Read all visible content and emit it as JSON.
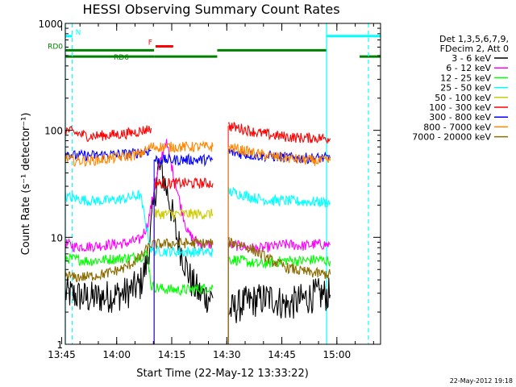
{
  "chart_data": {
    "type": "line",
    "title": "HESSI Observing Summary Count Rates",
    "xlabel": "Start Time (22-May-12 13:33:22)",
    "ylabel": "Count Rate (s⁻¹ detector⁻¹)",
    "x_range_minutes": [
      13.6,
      99.5
    ],
    "x_ticks": [
      {
        "t": 12.6,
        "label": "13:45"
      },
      {
        "t": 27.6,
        "label": "14:00"
      },
      {
        "t": 42.6,
        "label": "14:15"
      },
      {
        "t": 57.6,
        "label": "14:30"
      },
      {
        "t": 72.6,
        "label": "14:45"
      },
      {
        "t": 87.6,
        "label": "15:00"
      }
    ],
    "y_scale": "log",
    "ylim": [
      1,
      1000
    ],
    "y_ticks": [
      "1",
      "10",
      "100",
      "1000"
    ],
    "legend": {
      "placement": "right",
      "header": [
        "Det 1,3,5,6,7,9,",
        "FDecim 2, Att 0"
      ],
      "entries": [
        {
          "label": "3 - 6 keV",
          "color": "#000000"
        },
        {
          "label": "6 - 12 keV",
          "color": "#ff00ff"
        },
        {
          "label": "12 - 25 keV",
          "color": "#00ff00"
        },
        {
          "label": "25 - 50 keV",
          "color": "#00ffff"
        },
        {
          "label": "50 - 100 keV",
          "color": "#cccc00"
        },
        {
          "label": "100 - 300 keV",
          "color": "#ff0000"
        },
        {
          "label": "300 - 800 keV",
          "color": "#0000ff"
        },
        {
          "label": "800 - 7000 keV",
          "color": "#ff8800"
        },
        {
          "label": "7000 - 20000 keV",
          "color": "#8b6b00"
        }
      ]
    },
    "series": [
      {
        "name": "3 - 6 keV",
        "color": "#000000",
        "segments": [
          [
            [
              13.6,
              3.0
            ],
            [
              20,
              2.7
            ],
            [
              25,
              2.8
            ],
            [
              30,
              3.0
            ],
            [
              34,
              3.6
            ],
            [
              36,
              6
            ],
            [
              38,
              25
            ],
            [
              39,
              45
            ],
            [
              40,
              40
            ],
            [
              42,
              22
            ],
            [
              44,
              10
            ],
            [
              46,
              6
            ],
            [
              48,
              3.8
            ],
            [
              50,
              3.0
            ],
            [
              52,
              2.8
            ],
            [
              53.8,
              2.7
            ]
          ],
          [
            [
              58.0,
              2.0
            ],
            [
              62,
              2.4
            ],
            [
              66,
              2.6
            ],
            [
              70,
              2.7
            ],
            [
              74,
              2.3
            ],
            [
              78,
              2.6
            ],
            [
              82,
              2.9
            ],
            [
              85.8,
              2.9
            ]
          ]
        ]
      },
      {
        "name": "6 - 12 keV",
        "color": "#ff00ff",
        "segments": [
          [
            [
              13.6,
              8.8
            ],
            [
              16,
              8.2
            ],
            [
              20,
              8.2
            ],
            [
              25,
              8.5
            ],
            [
              30,
              8.8
            ],
            [
              34,
              9.5
            ],
            [
              36,
              13
            ],
            [
              38,
              30
            ],
            [
              40,
              60
            ],
            [
              41,
              80
            ],
            [
              43,
              40
            ],
            [
              45,
              20
            ],
            [
              47,
              11
            ],
            [
              50,
              8.7
            ],
            [
              53.8,
              8.5
            ]
          ],
          [
            [
              58.0,
              8.5
            ],
            [
              62,
              8.2
            ],
            [
              66,
              7.8
            ],
            [
              70,
              8.2
            ],
            [
              74,
              8.6
            ],
            [
              78,
              8.3
            ],
            [
              82,
              8.6
            ],
            [
              85.8,
              8.5
            ]
          ]
        ]
      },
      {
        "name": "12 - 25 keV",
        "color": "#00ff00",
        "segments": [
          [
            [
              13.6,
              6.4
            ],
            [
              20,
              6.0
            ],
            [
              25,
              6.2
            ],
            [
              30,
              6.4
            ],
            [
              34,
              6.6
            ],
            [
              36,
              7.0
            ],
            [
              37,
              3.5
            ],
            [
              40,
              3.3
            ],
            [
              45,
              3.2
            ],
            [
              50,
              3.3
            ],
            [
              53.8,
              3.4
            ]
          ],
          [
            [
              58.0,
              6.3
            ],
            [
              62,
              6.0
            ],
            [
              66,
              5.6
            ],
            [
              70,
              5.8
            ],
            [
              74,
              6.1
            ],
            [
              78,
              6.0
            ],
            [
              82,
              6.2
            ],
            [
              85.8,
              6.0
            ]
          ]
        ]
      },
      {
        "name": "25 - 50 keV",
        "color": "#00ffff",
        "segments": [
          [
            [
              13.6,
              24
            ],
            [
              20,
              22
            ],
            [
              25,
              22
            ],
            [
              30,
              23
            ],
            [
              34,
              25
            ],
            [
              37,
              7.5
            ],
            [
              45,
              7.3
            ],
            [
              53.8,
              7.3
            ]
          ],
          [
            [
              58.0,
              27
            ],
            [
              62,
              25
            ],
            [
              66,
              23
            ],
            [
              70,
              22
            ],
            [
              74,
              22
            ],
            [
              78,
              21.5
            ],
            [
              82,
              21.5
            ],
            [
              85.8,
              21
            ]
          ]
        ]
      },
      {
        "name": "50 - 100 keV",
        "color": "#cccc00",
        "segments": [
          [
            [
              37.8,
              16.5
            ],
            [
              45,
              16.5
            ],
            [
              53.8,
              16.5
            ]
          ]
        ]
      },
      {
        "name": "100 - 300 keV",
        "color": "#ff0000",
        "segments": [
          [
            [
              13.6,
              102
            ],
            [
              16,
              95
            ],
            [
              20,
              88
            ],
            [
              25,
              90
            ],
            [
              30,
              93
            ],
            [
              34,
              98
            ],
            [
              37,
              105
            ]
          ],
          [
            [
              37.8,
              32
            ],
            [
              45,
              32
            ],
            [
              53.8,
              32
            ]
          ],
          [
            [
              58.0,
              110
            ],
            [
              62,
              103
            ],
            [
              66,
              95
            ],
            [
              70,
              90
            ],
            [
              74,
              87
            ],
            [
              78,
              85
            ],
            [
              82,
              85
            ],
            [
              85.8,
              84
            ]
          ]
        ]
      },
      {
        "name": "300 - 800 keV",
        "color": "#0000ff",
        "segments": [
          [
            [
              13.6,
              62
            ],
            [
              16,
              58
            ],
            [
              20,
              58
            ],
            [
              25,
              59
            ],
            [
              30,
              60
            ],
            [
              34,
              62
            ],
            [
              37,
              65
            ]
          ],
          [
            [
              37.8,
              53
            ],
            [
              45,
              53
            ],
            [
              53.8,
              53
            ]
          ],
          [
            [
              58.0,
              63
            ],
            [
              62,
              60
            ],
            [
              66,
              58
            ],
            [
              70,
              57
            ],
            [
              74,
              56
            ],
            [
              78,
              55
            ],
            [
              82,
              55
            ],
            [
              85.8,
              55
            ]
          ]
        ]
      },
      {
        "name": "800 - 7000 keV",
        "color": "#ff8800",
        "segments": [
          [
            [
              13.6,
              55
            ],
            [
              16,
              52
            ],
            [
              20,
              52
            ],
            [
              25,
              54
            ],
            [
              30,
              57
            ],
            [
              34,
              60
            ],
            [
              37,
              70
            ],
            [
              45,
              70
            ],
            [
              53.8,
              70
            ]
          ],
          [
            [
              58.0,
              70
            ],
            [
              62,
              65
            ],
            [
              66,
              60
            ],
            [
              70,
              57
            ],
            [
              74,
              55
            ],
            [
              78,
              53
            ],
            [
              82,
              52
            ],
            [
              85.8,
              52
            ]
          ]
        ]
      },
      {
        "name": "7000 - 20000 keV",
        "color": "#8b6b00",
        "segments": [
          [
            [
              13.6,
              4.5
            ],
            [
              16,
              4.2
            ],
            [
              20,
              4.3
            ],
            [
              25,
              4.6
            ],
            [
              30,
              5.2
            ],
            [
              34,
              6.5
            ],
            [
              37,
              8.6
            ],
            [
              45,
              8.8
            ],
            [
              53.8,
              8.8
            ]
          ],
          [
            [
              58.0,
              9.0
            ],
            [
              62,
              8.5
            ],
            [
              66,
              7.2
            ],
            [
              70,
              6.0
            ],
            [
              74,
              5.2
            ],
            [
              78,
              4.8
            ],
            [
              82,
              4.6
            ],
            [
              85.8,
              4.5
            ]
          ]
        ]
      }
    ],
    "flag_bars": [
      {
        "label": "N",
        "color": "#00ffff",
        "level": 760,
        "spans": [
          [
            0,
            15.5
          ],
          [
            84.8,
            99.5
          ]
        ]
      },
      {
        "label": "F",
        "color": "#ff0000",
        "level": 610,
        "spans": [
          [
            38.2,
            43.0
          ]
        ]
      },
      {
        "label": "RD0",
        "color": "#008000",
        "level": 560,
        "spans": [
          [
            12.8,
            37.8
          ],
          [
            55.0,
            84.8
          ]
        ]
      },
      {
        "label": "RD6",
        "color": "#008000",
        "level": 490,
        "spans": [
          [
            0,
            37.8
          ],
          [
            37.8,
            55.0
          ],
          [
            93.8,
            99.5
          ]
        ]
      }
    ],
    "vlines": [
      {
        "t": 0.0,
        "color": "#00ffff",
        "style": "solid"
      },
      {
        "t": 15.5,
        "color": "#00ffff",
        "style": "dashed"
      },
      {
        "t": 84.8,
        "color": "#00ffff",
        "style": "solid"
      },
      {
        "t": 96.2,
        "color": "#00ffff",
        "style": "dashed"
      }
    ]
  },
  "footer": {
    "timestamp": "22-May-2012 19:18"
  }
}
